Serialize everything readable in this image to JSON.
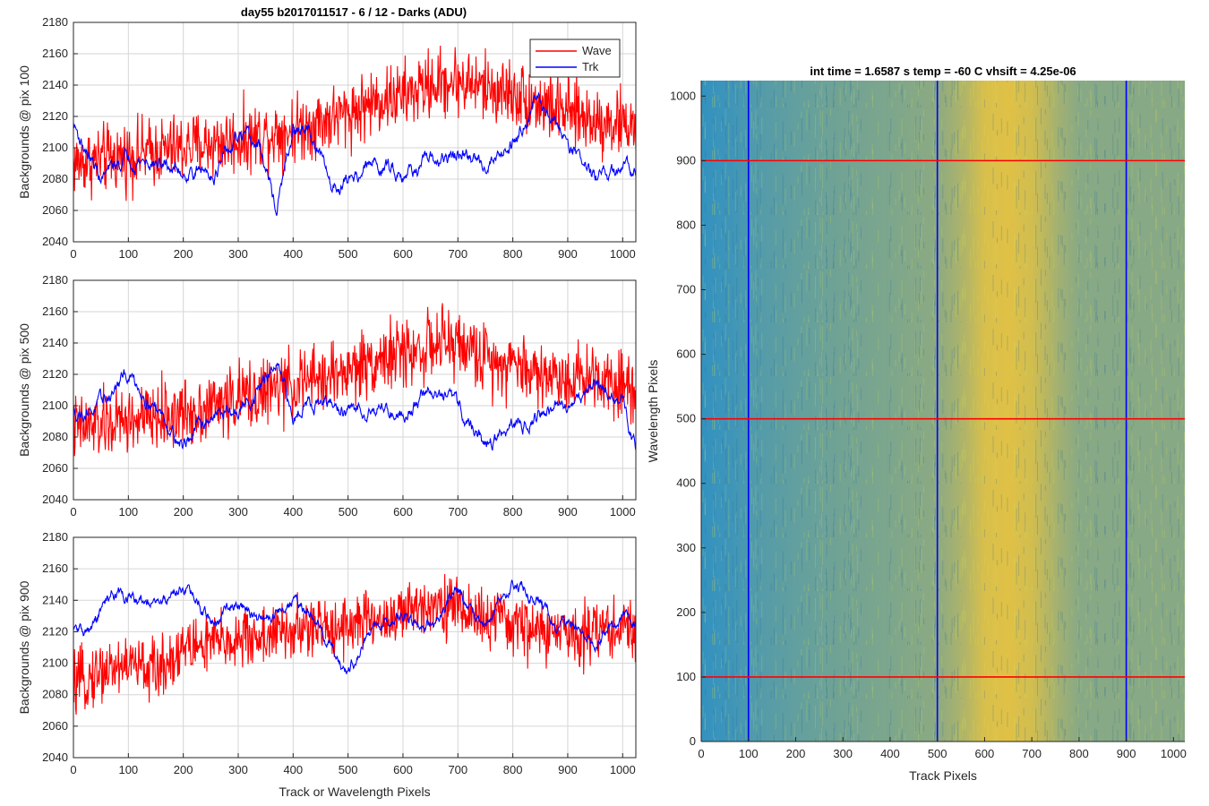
{
  "figure_title": "day55 b2017011517 - 6 / 12 - Darks (ADU)",
  "colors": {
    "wave": "#ff0000",
    "trk": "#0000ff",
    "grid": "#d6d6d6",
    "heatmap_low": "#1e8ccf",
    "heatmap_high": "#f1c63a"
  },
  "chart_data": [
    {
      "type": "line",
      "ylabel": "Backgrounds @ pix 100",
      "xlabel": "",
      "xlim": [
        0,
        1024
      ],
      "ylim": [
        2040,
        2180
      ],
      "xticks": [
        0,
        100,
        200,
        300,
        400,
        500,
        600,
        700,
        800,
        900,
        1000
      ],
      "yticks": [
        2040,
        2060,
        2080,
        2100,
        2120,
        2140,
        2160,
        2180
      ],
      "grid": true,
      "legend": {
        "placement": "top-right",
        "entries": [
          "Wave",
          "Trk"
        ]
      },
      "series": [
        {
          "name": "Wave",
          "color": "#ff0000",
          "noise": 18,
          "x": [
            0,
            100,
            200,
            300,
            400,
            500,
            550,
            600,
            650,
            700,
            750,
            800,
            850,
            900,
            950,
            1000,
            1024
          ],
          "y": [
            2090,
            2095,
            2100,
            2105,
            2112,
            2122,
            2130,
            2133,
            2140,
            2143,
            2138,
            2135,
            2128,
            2122,
            2118,
            2115,
            2115
          ]
        },
        {
          "name": "Trk",
          "color": "#0000ff",
          "noise": 6,
          "x": [
            0,
            20,
            50,
            100,
            150,
            200,
            260,
            300,
            340,
            370,
            400,
            430,
            470,
            500,
            550,
            600,
            650,
            700,
            750,
            800,
            840,
            880,
            950,
            1000,
            1024
          ],
          "y": [
            2115,
            2100,
            2080,
            2095,
            2090,
            2085,
            2085,
            2105,
            2100,
            2060,
            2110,
            2110,
            2075,
            2080,
            2090,
            2085,
            2090,
            2095,
            2090,
            2105,
            2130,
            2115,
            2080,
            2085,
            2090
          ]
        }
      ]
    },
    {
      "type": "line",
      "ylabel": "Backgrounds @ pix 500",
      "xlabel": "",
      "xlim": [
        0,
        1024
      ],
      "ylim": [
        2040,
        2180
      ],
      "xticks": [
        0,
        100,
        200,
        300,
        400,
        500,
        600,
        700,
        800,
        900,
        1000
      ],
      "yticks": [
        2040,
        2060,
        2080,
        2100,
        2120,
        2140,
        2160,
        2180
      ],
      "grid": true,
      "series": [
        {
          "name": "Wave",
          "color": "#ff0000",
          "noise": 18,
          "x": [
            0,
            100,
            200,
            300,
            400,
            500,
            550,
            600,
            650,
            700,
            750,
            800,
            850,
            900,
            950,
            1000,
            1024
          ],
          "y": [
            2085,
            2090,
            2095,
            2105,
            2113,
            2122,
            2130,
            2133,
            2138,
            2140,
            2130,
            2128,
            2120,
            2118,
            2120,
            2115,
            2110
          ]
        },
        {
          "name": "Trk",
          "color": "#0000ff",
          "noise": 6,
          "x": [
            0,
            50,
            100,
            150,
            200,
            250,
            300,
            370,
            400,
            420,
            500,
            550,
            600,
            650,
            700,
            750,
            800,
            850,
            900,
            950,
            1000,
            1024
          ],
          "y": [
            2095,
            2100,
            2120,
            2100,
            2075,
            2095,
            2095,
            2125,
            2090,
            2105,
            2095,
            2100,
            2095,
            2110,
            2100,
            2075,
            2085,
            2095,
            2100,
            2115,
            2100,
            2075
          ]
        }
      ]
    },
    {
      "type": "line",
      "ylabel": "Backgrounds @ pix 900",
      "xlabel": "Track or Wavelength Pixels",
      "xlim": [
        0,
        1024
      ],
      "ylim": [
        2040,
        2180
      ],
      "xticks": [
        0,
        100,
        200,
        300,
        400,
        500,
        600,
        700,
        800,
        900,
        1000
      ],
      "yticks": [
        2040,
        2060,
        2080,
        2100,
        2120,
        2140,
        2160,
        2180
      ],
      "grid": true,
      "series": [
        {
          "name": "Wave",
          "color": "#ff0000",
          "noise": 16,
          "x": [
            0,
            50,
            100,
            150,
            200,
            300,
            400,
            500,
            600,
            650,
            700,
            750,
            800,
            850,
            900,
            950,
            1000,
            1024
          ],
          "y": [
            2085,
            2095,
            2100,
            2095,
            2110,
            2115,
            2120,
            2125,
            2130,
            2140,
            2135,
            2128,
            2125,
            2120,
            2118,
            2122,
            2122,
            2120
          ]
        },
        {
          "name": "Trk",
          "color": "#0000ff",
          "noise": 5,
          "x": [
            0,
            30,
            70,
            150,
            200,
            230,
            260,
            300,
            340,
            400,
            430,
            470,
            500,
            540,
            600,
            650,
            700,
            750,
            800,
            850,
            880,
            900,
            950,
            1000,
            1024
          ],
          "y": [
            2120,
            2120,
            2145,
            2135,
            2150,
            2135,
            2125,
            2140,
            2125,
            2140,
            2130,
            2110,
            2095,
            2120,
            2130,
            2125,
            2145,
            2125,
            2150,
            2140,
            2125,
            2125,
            2115,
            2130,
            2125
          ]
        }
      ]
    },
    {
      "type": "heatmap",
      "title": "int time = 1.6587 s    temp = -60 C    vhsift = 4.25e-06",
      "xlabel": "Track Pixels",
      "ylabel": "Wavelength Pixels",
      "xlim": [
        0,
        1024
      ],
      "ylim": [
        0,
        1024
      ],
      "xticks": [
        0,
        100,
        200,
        300,
        400,
        500,
        600,
        700,
        800,
        900,
        1000
      ],
      "yticks": [
        0,
        100,
        200,
        300,
        400,
        500,
        600,
        700,
        800,
        900,
        1000
      ],
      "grid": false,
      "column_profile": {
        "x": [
          0,
          60,
          120,
          200,
          300,
          400,
          500,
          560,
          600,
          650,
          700,
          750,
          800,
          900,
          1024
        ],
        "level": [
          0.1,
          0.15,
          0.25,
          0.32,
          0.4,
          0.45,
          0.52,
          0.7,
          0.88,
          0.92,
          0.85,
          0.65,
          0.5,
          0.5,
          0.5
        ]
      },
      "vertical_markers": {
        "color": "#0000ff",
        "x": [
          100,
          500,
          900
        ]
      },
      "horizontal_markers": {
        "color": "#ff0000",
        "y": [
          100,
          500,
          900
        ]
      }
    }
  ]
}
